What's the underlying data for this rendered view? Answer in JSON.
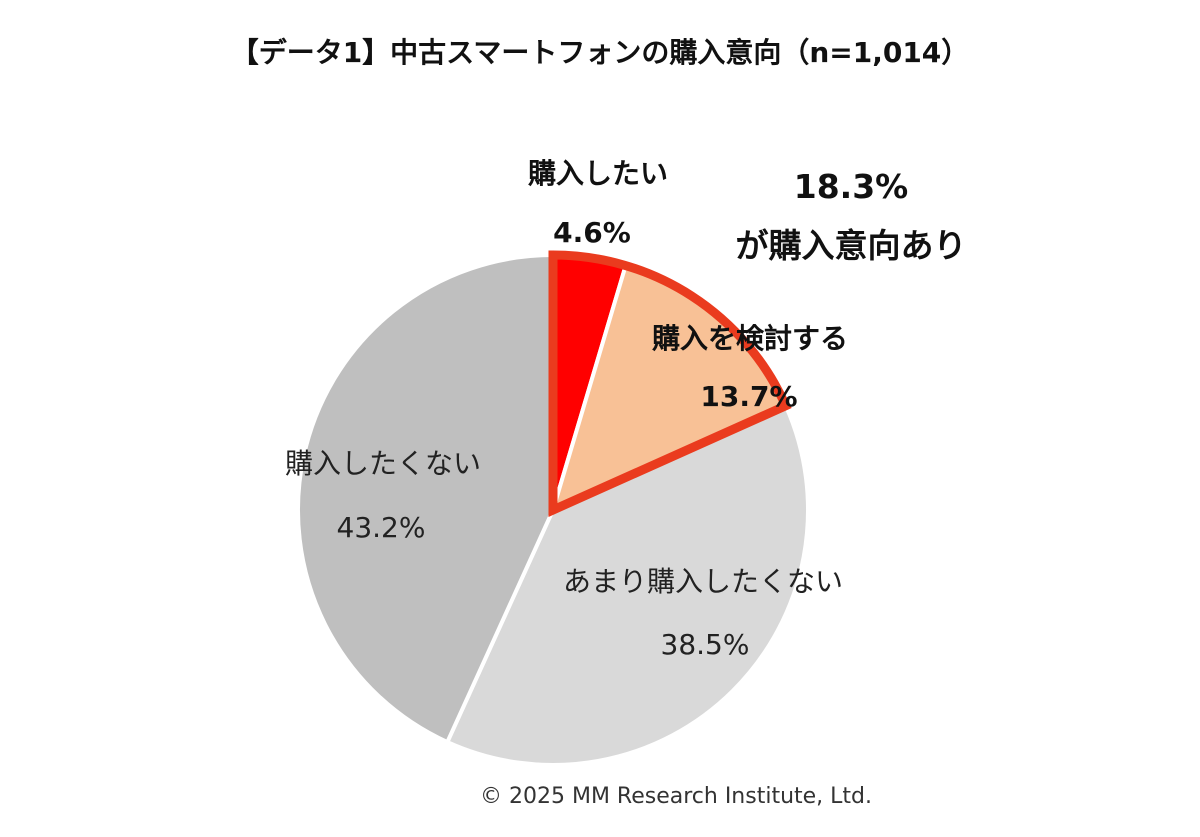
{
  "chart_data": {
    "type": "pie",
    "title": "【データ1】中古スマートフォンの購入意向（n=1,014）",
    "slices": [
      {
        "label": "購入したい",
        "value": 4.6,
        "value_label": "4.6%",
        "color": "#ff0000"
      },
      {
        "label": "購入を検討する",
        "value": 13.7,
        "value_label": "13.7%",
        "color": "#f8c196"
      },
      {
        "label": "あまり購入したくない",
        "value": 38.5,
        "value_label": "38.5%",
        "color": "#d9d9d9"
      },
      {
        "label": "購入したくない",
        "value": 43.2,
        "value_label": "43.2%",
        "color": "#bfbfbf"
      }
    ],
    "highlight": {
      "line1": "18.3%",
      "line2": "が購入意向あり",
      "outline_color": "#ea3b1e"
    },
    "start_angle_deg": 0,
    "direction": "clockwise"
  },
  "credit": "© 2025 MM Research Institute, Ltd."
}
